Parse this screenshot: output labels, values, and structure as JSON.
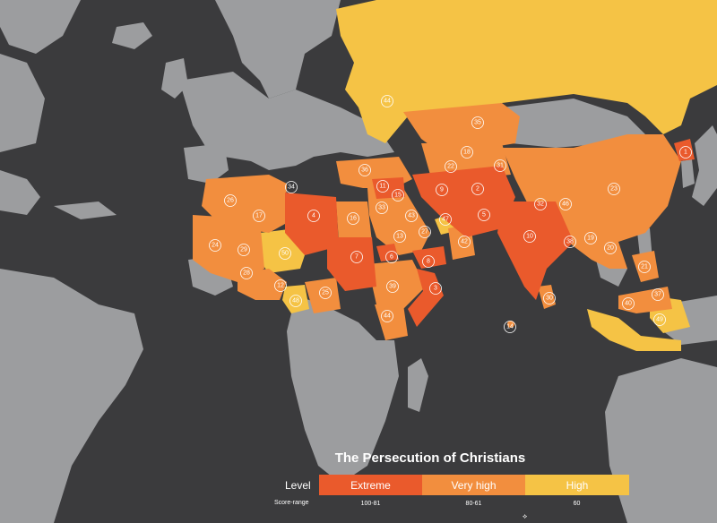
{
  "colors": {
    "ocean": "#3b3b3d",
    "land": "#9c9d9f",
    "extreme": "#ea5a2c",
    "very_high": "#f28e3e",
    "high": "#f5c345"
  },
  "legend": {
    "title": "The Persecution of Christians",
    "level_label": "Level",
    "score_range_label": "Score-range",
    "levels": [
      {
        "name": "Extreme",
        "range": "100-81"
      },
      {
        "name": "Very high",
        "range": "80-61"
      },
      {
        "name": "High",
        "range": "60"
      }
    ],
    "compass": "⟡"
  },
  "markers": [
    {
      "rank": "1",
      "country": "North Korea"
    },
    {
      "rank": "2",
      "country": "Afghanistan"
    },
    {
      "rank": "3",
      "country": "Somalia"
    },
    {
      "rank": "4",
      "country": "Libya"
    },
    {
      "rank": "5",
      "country": "Pakistan"
    },
    {
      "rank": "6",
      "country": "Eritrea"
    },
    {
      "rank": "7",
      "country": "Sudan"
    },
    {
      "rank": "8",
      "country": "Yemen"
    },
    {
      "rank": "9",
      "country": "Iran"
    },
    {
      "rank": "10",
      "country": "India"
    },
    {
      "rank": "11",
      "country": "Syria"
    },
    {
      "rank": "12",
      "country": "Nigeria"
    },
    {
      "rank": "13",
      "country": "Iraq/Saudi Arabia"
    },
    {
      "rank": "14",
      "country": "Maldives"
    },
    {
      "rank": "15",
      "country": "Iraq"
    },
    {
      "rank": "16",
      "country": "Egypt"
    },
    {
      "rank": "17",
      "country": "Algeria"
    },
    {
      "rank": "18",
      "country": "Uzbekistan"
    },
    {
      "rank": "19",
      "country": "Laos"
    },
    {
      "rank": "20",
      "country": "Vietnam"
    },
    {
      "rank": "21",
      "country": "Philippines"
    },
    {
      "rank": "22",
      "country": "Turkmenistan"
    },
    {
      "rank": "23",
      "country": "China"
    },
    {
      "rank": "24",
      "country": "Mauritania"
    },
    {
      "rank": "25",
      "country": "Central African Republic"
    },
    {
      "rank": "26",
      "country": "Morocco"
    },
    {
      "rank": "27",
      "country": "Qatar"
    },
    {
      "rank": "28",
      "country": "Burkina Faso"
    },
    {
      "rank": "29",
      "country": "Mali"
    },
    {
      "rank": "30",
      "country": "Sri Lanka"
    },
    {
      "rank": "31",
      "country": "Tajikistan"
    },
    {
      "rank": "32",
      "country": "Nepal"
    },
    {
      "rank": "33",
      "country": "Jordan"
    },
    {
      "rank": "34",
      "country": "Tunisia"
    },
    {
      "rank": "35",
      "country": "Kazakhstan"
    },
    {
      "rank": "36",
      "country": "Turkey"
    },
    {
      "rank": "37",
      "country": "Brunei"
    },
    {
      "rank": "38",
      "country": "Myanmar"
    },
    {
      "rank": "39",
      "country": "Ethiopia"
    },
    {
      "rank": "40",
      "country": "Malaysia"
    },
    {
      "rank": "42",
      "country": "Oman"
    },
    {
      "rank": "43",
      "country": "Saudi Arabia"
    },
    {
      "rank": "44",
      "country": "Russia"
    },
    {
      "rank": "44",
      "country": "Kenya"
    },
    {
      "rank": "46",
      "country": "Bhutan"
    },
    {
      "rank": "47",
      "country": "UAE"
    },
    {
      "rank": "48",
      "country": "Cameroon"
    },
    {
      "rank": "49",
      "country": "Indonesia"
    },
    {
      "rank": "50",
      "country": "Niger"
    }
  ]
}
